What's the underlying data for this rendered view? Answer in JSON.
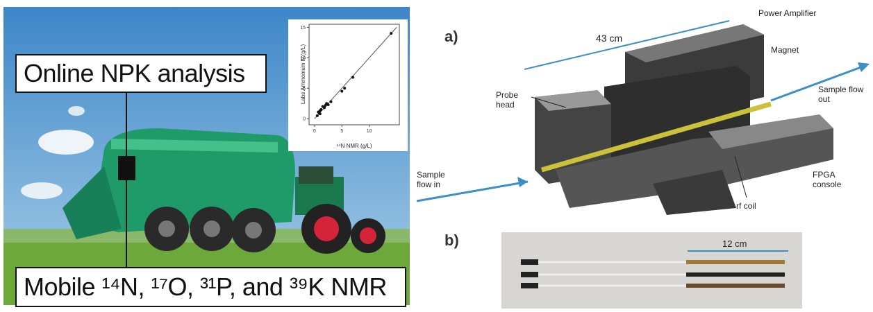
{
  "left_panel": {
    "title_box": "Online NPK analysis",
    "caption_box": "Mobile ¹⁴N, ¹⁷O, ³¹P, and ³⁹K NMR",
    "inset_plot": {
      "type": "scatter",
      "x_label": "¹⁴N NMR (g/L)",
      "y_label": "Labs Ammonium N (g/L)",
      "xlim": [
        -1,
        15.5
      ],
      "ylim": [
        -1,
        15.5
      ],
      "xticks": [
        0,
        5,
        10
      ],
      "yticks": [
        0,
        5,
        10,
        15
      ],
      "x": [
        0.5,
        0.7,
        0.8,
        1,
        1,
        1.2,
        1.5,
        1.8,
        2,
        2.2,
        2.5,
        3,
        5,
        5.5,
        7,
        14
      ],
      "y": [
        0.5,
        1.1,
        1,
        1.3,
        0.8,
        1.5,
        2,
        1.8,
        2.2,
        2.5,
        2.3,
        2.8,
        4.5,
        5,
        6.8,
        14
      ],
      "fit_line": {
        "x": [
          0,
          15
        ],
        "y": [
          0,
          15
        ]
      }
    }
  },
  "panel_a": {
    "label": "a)",
    "length": "43 cm",
    "power_amplifier": "Power Amplifier",
    "magnet": "Magnet",
    "probe_head": "Probe head",
    "sample_out": "Sample flow out",
    "sample_in": "Sample flow in",
    "rf_coil": "rf coil",
    "fpga": "FPGA console"
  },
  "panel_b": {
    "label": "b)",
    "length": "12 cm"
  }
}
